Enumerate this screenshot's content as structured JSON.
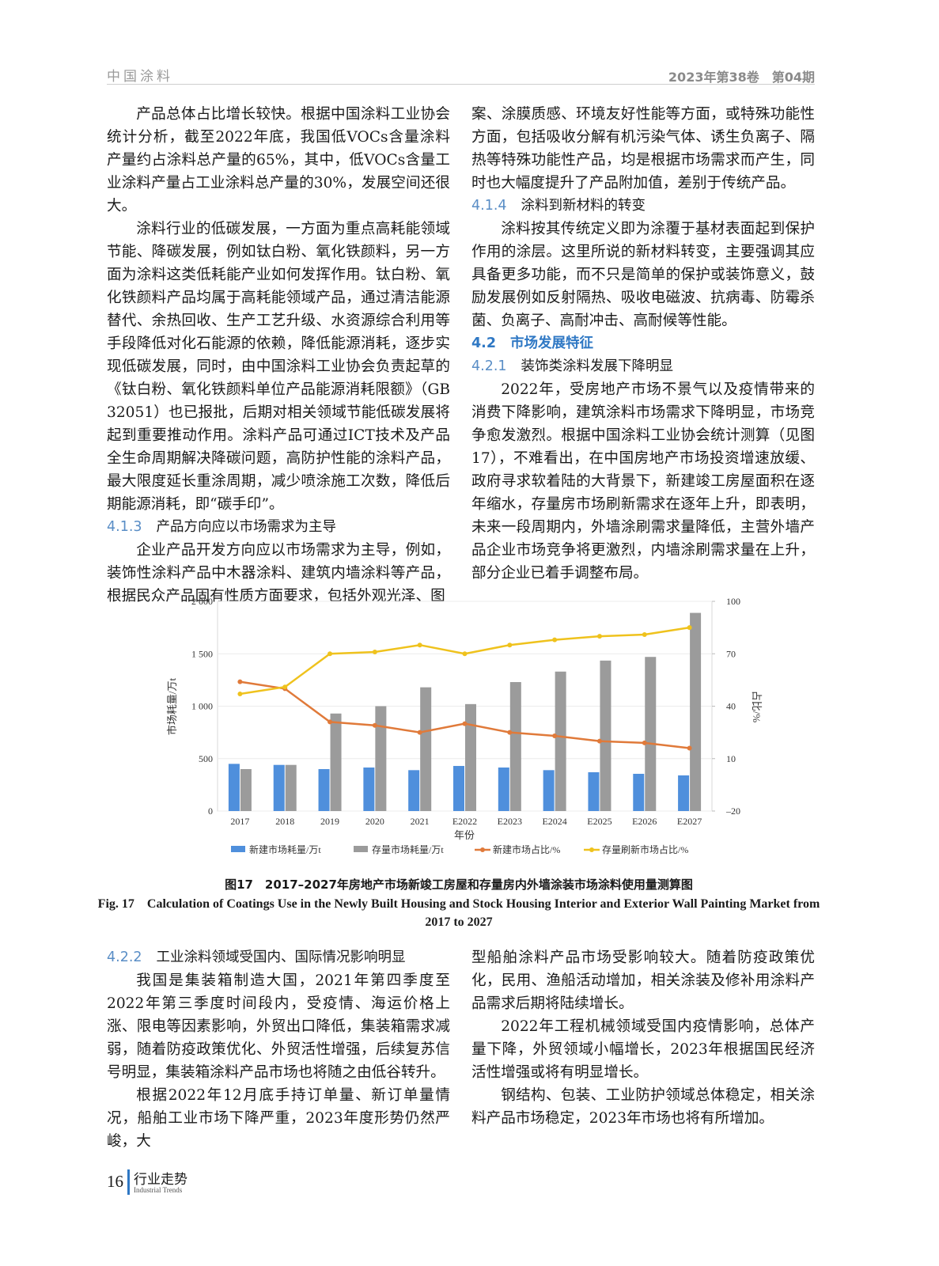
{
  "header": {
    "journal": "中国涂料",
    "issue": "2023年第38卷　第04期"
  },
  "top_left": {
    "paragraph_1": "产品总体占比增长较快。根据中国涂料工业协会统计分析，截至2022年底，我国低VOCs含量涂料产量约占涂料总产量的65%，其中，低VOCs含量工业涂料产量占工业涂料总产量的30%，发展空间还很大。",
    "paragraph_2": "涂料行业的低碳发展，一方面为重点高耗能领域节能、降碳发展，例如钛白粉、氧化铁颜料，另一方面为涂料这类低耗能产业如何发挥作用。钛白粉、氧化铁颜料产品均属于高耗能领域产品，通过清洁能源替代、余热回收、生产工艺升级、水资源综合利用等手段降低对化石能源的依赖，降低能源消耗，逐步实现低碳发展，同时，由中国涂料工业协会负责起草的《钛白粉、氧化铁颜料单位产品能源消耗限额》（GB 32051）也已报批，后期对相关领域节能低碳发展将起到重要推动作用。涂料产品可通过ICT技术及产品全生命周期解决降碳问题，高防护性能的涂料产品，最大限度延长重涂周期，减少喷涂施工次数，降低后期能源消耗，即“碳手印”。",
    "section_4_1_3": {
      "number": "4.1.3",
      "title": "产品方向应以市场需求为主导"
    },
    "paragraph_3": "企业产品开发方向应以市场需求为主导，例如，装饰性涂料产品中木器涂料、建筑内墙涂料等产品，根据民众产品固有性质方面要求，包括外观光泽、图"
  },
  "top_right": {
    "paragraph_3_continued": "案、涂膜质感、环境友好性能等方面，或特殊功能性方面，包括吸收分解有机污染气体、诱生负离子、隔热等特殊功能性产品，均是根据市场需求而产生，同时也大幅度提升了产品附加值，差别于传统产品。",
    "section_4_1_4": {
      "number": "4.1.4",
      "title": "涂料到新材料的转变"
    },
    "paragraph_4": "涂料按其传统定义即为涂覆于基材表面起到保护作用的涂层。这里所说的新材料转变，主要强调其应具备更多功能，而不只是简单的保护或装饰意义，鼓励发展例如反射隔热、吸收电磁波、抗病毒、防霉杀菌、负离子、高耐冲击、高耐候等性能。",
    "section_4_2": {
      "number": "4.2",
      "title": "市场发展特征"
    },
    "section_4_2_1": {
      "number": "4.2.1",
      "title": "装饰类涂料发展下降明显"
    },
    "paragraph_5": "2022年，受房地产市场不景气以及疫情带来的消费下降影响，建筑涂料市场需求下降明显，市场竞争愈发激烈。根据中国涂料工业协会统计测算（见图17），不难看出，在中国房地产市场投资增速放缓、政府寻求软着陆的大背景下，新建竣工房屋面积在逐年缩水，存量房市场刷新需求在逐年上升，即表明，未来一段周期内，外墙涂刷需求量降低，主营外墙产品企业市场竞争将更激烈，内墙涂刷需求量在上升，部分企业已着手调整布局。"
  },
  "chart_data": {
    "type": "combo",
    "categories": [
      "2017",
      "2018",
      "2019",
      "2020",
      "2021",
      "E2022",
      "E2023",
      "E2024",
      "E2025",
      "E2026",
      "E2027"
    ],
    "xlabel": "年份",
    "ylabel": "市场耗量/万t",
    "y2label": "占比/%",
    "ylim": [
      0,
      2000
    ],
    "yticks": [
      0,
      500,
      {
        "value": 1000,
        "label": "1 000"
      },
      {
        "value": 1500,
        "label": "1 500"
      },
      {
        "value": 2000,
        "label": "2 000"
      }
    ],
    "y2lim": [
      -20,
      100
    ],
    "y2ticks": [
      {
        "value": -20,
        "label": "–20"
      },
      10,
      40,
      70,
      100
    ],
    "grid": true,
    "legend": "bottom",
    "series": [
      {
        "name": "新建市场耗量/万t",
        "type": "bar",
        "color": "#4f8fdc",
        "values": [
          450,
          440,
          400,
          415,
          390,
          430,
          415,
          390,
          370,
          355,
          340
        ]
      },
      {
        "name": "存量市场耗量/万t",
        "type": "bar",
        "color": "#9b9b9b",
        "values": [
          400,
          440,
          930,
          1000,
          1180,
          1020,
          1230,
          1330,
          1435,
          1470,
          1890
        ]
      },
      {
        "name": "新建市场占比/%",
        "type": "line",
        "axis": "y2",
        "color": "#e07a3a",
        "values": [
          54,
          50,
          31,
          29,
          25,
          30,
          25,
          23,
          20,
          19,
          16
        ]
      },
      {
        "name": "存量刷新市场占比/%",
        "type": "line",
        "axis": "y2",
        "color": "#efc21d",
        "values": [
          47,
          51,
          70,
          71,
          75,
          70,
          75,
          78,
          80,
          81,
          85
        ]
      }
    ]
  },
  "figure": {
    "caption_zh": "图17　2017–2027年房地产市场新竣工房屋和存量房内外墙涂装市场涂料使用量测算图",
    "caption_en": "Fig. 17　Calculation of Coatings Use in the Newly Built Housing and Stock Housing Interior and Exterior Wall Painting Market from 2017 to 2027"
  },
  "bottom_left": {
    "section_4_2_2": {
      "number": "4.2.2",
      "title": "工业涂料领域受国内、国际情况影响明显"
    },
    "paragraph_6": "我国是集装箱制造大国，2021年第四季度至2022年第三季度时间段内，受疫情、海运价格上涨、限电等因素影响，外贸出口降低，集装箱需求减弱，随着防疫政策优化、外贸活性增强，后续复苏信号明显，集装箱涂料产品市场也将随之由低谷转升。",
    "paragraph_7": "根据2022年12月底手持订单量、新订单量情况，船舶工业市场下降严重，2023年度形势仍然严峻，大"
  },
  "bottom_right": {
    "paragraph_7_continued": "型船舶涂料产品市场受影响较大。随着防疫政策优化，民用、渔船活动增加，相关涂装及修补用涂料产品需求后期将陆续增长。",
    "paragraph_8": "2022年工程机械领域受国内疫情影响，总体产量下降，外贸领域小幅增长，2023年根据国民经济活性增强或将有明显增长。",
    "paragraph_9": "钢结构、包装、工业防护领域总体稳定，相关涂料产品市场稳定，2023年市场也将有所增加。"
  },
  "footer": {
    "page": "16",
    "section": "行业走势",
    "section_en": "Industrial Trends"
  }
}
